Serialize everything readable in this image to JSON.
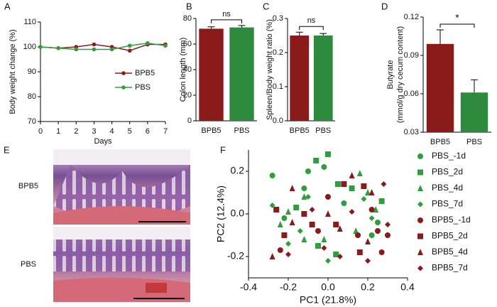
{
  "chart_data": [
    {
      "type": "line",
      "panel_label": "A",
      "xlabel": "Days",
      "ylabel": "Body weight change (%)",
      "x": [
        0,
        1,
        2,
        3,
        4,
        5,
        6,
        7
      ],
      "xlim": [
        0,
        7
      ],
      "xticks": [
        0,
        1,
        2,
        3,
        4,
        5,
        6,
        7
      ],
      "ylim": [
        70,
        110
      ],
      "yticks": [
        70,
        80,
        90,
        100,
        110
      ],
      "legend": "center-right",
      "series": [
        {
          "name": "BPB5",
          "color": "#8b1a1a",
          "values": [
            100,
            99.5,
            100,
            101,
            100,
            98.5,
            101,
            101
          ]
        },
        {
          "name": "PBS",
          "color": "#2e9e3e",
          "values": [
            100,
            99.5,
            99,
            99,
            99,
            100.5,
            101.5,
            100.5
          ]
        }
      ]
    },
    {
      "type": "bar",
      "panel_label": "B",
      "ylabel": "Colon length (mm)",
      "categories": [
        "BPB5",
        "PBS"
      ],
      "values": [
        72,
        73
      ],
      "errors": [
        1.5,
        1.5
      ],
      "colors": [
        "#8b1a1a",
        "#2e8b3e"
      ],
      "ylim": [
        0,
        80
      ],
      "yticks": [
        0,
        20,
        40,
        60,
        80
      ],
      "annotation": "ns"
    },
    {
      "type": "bar",
      "panel_label": "C",
      "ylabel": "Spleen/Body weight ratio (%)",
      "categories": [
        "BPB5",
        "PBS"
      ],
      "values": [
        0.25,
        0.25
      ],
      "errors": [
        0.01,
        0.006
      ],
      "colors": [
        "#8b1a1a",
        "#2e8b3e"
      ],
      "ylim": [
        0,
        0.3
      ],
      "yticks": [
        {
          "value": 0,
          "label": "0.0"
        },
        0.1,
        0.2,
        0.3
      ],
      "annotation": "ns"
    },
    {
      "type": "bar",
      "panel_label": "D",
      "ylabel": [
        "Butyrate",
        "(mmol/g dry cecum content)"
      ],
      "categories": [
        "BPB5",
        "PBS"
      ],
      "values": [
        0.099,
        0.061
      ],
      "errors": [
        0.011,
        0.01
      ],
      "colors": [
        "#8b1a1a",
        "#2e8b3e"
      ],
      "ylim": [
        0.03,
        0.12
      ],
      "yticks": [
        0.03,
        0.06,
        0.09,
        0.12
      ],
      "annotation": "*"
    },
    {
      "type": "scatter",
      "panel_label": "F",
      "xlabel": "PC1 (21.8%)",
      "ylabel": "PC2 (12.4%)",
      "xlim": [
        -0.4,
        0.4
      ],
      "xticks": [
        -0.4,
        -0.2,
        {
          "value": 0,
          "label": "0.0"
        },
        0.2,
        0.4
      ],
      "ylim": [
        -0.3,
        0.3
      ],
      "yticks": [
        -0.2,
        {
          "value": 0,
          "label": "0.0"
        },
        0.2
      ],
      "legend": "right",
      "series": [
        {
          "name": "PBS_-1d",
          "color": "#2e9e3e",
          "marker": "circle",
          "x": [
            -0.28,
            -0.1,
            -0.02,
            0.08,
            0.15,
            0.25,
            0.22,
            -0.12,
            -0.22
          ],
          "values": [
            0.18,
            0.2,
            0.22,
            0.05,
            -0.1,
            -0.04,
            -0.1,
            0.12,
            -0.02
          ]
        },
        {
          "name": "PBS_2d",
          "color": "#2e9e3e",
          "marker": "square",
          "x": [
            0.0,
            -0.06,
            0.05,
            0.12,
            0.27,
            -0.16,
            0.04,
            -0.05
          ],
          "values": [
            0.28,
            0.25,
            0.14,
            0.12,
            0.06,
            0.03,
            -0.19,
            -0.15
          ]
        },
        {
          "name": "PBS_4d",
          "color": "#2e9e3e",
          "marker": "triangle",
          "x": [
            0.16,
            0.2,
            -0.12,
            -0.2,
            0.24,
            -0.24,
            -0.12,
            -0.02,
            0.14
          ],
          "values": [
            0.19,
            0.1,
            0.08,
            0.01,
            0.02,
            -0.05,
            -0.12,
            -0.12,
            -0.08
          ]
        },
        {
          "name": "PBS_7d",
          "color": "#2e9e3e",
          "marker": "diamond",
          "x": [
            -0.28,
            -0.1,
            0.18,
            -0.2,
            0.0,
            0.22,
            -0.14
          ],
          "values": [
            0.04,
            0.08,
            0.07,
            -0.14,
            -0.22,
            -0.02,
            -0.08
          ]
        },
        {
          "name": "BPB5_-1d",
          "color": "#8b1a1a",
          "marker": "circle",
          "x": [
            0.0,
            0.15,
            0.25,
            0.27,
            -0.24,
            0.22,
            0.3,
            -0.05
          ],
          "values": [
            0.08,
            -0.1,
            -0.08,
            -0.18,
            -0.17,
            0.02,
            -0.1,
            -0.08
          ]
        },
        {
          "name": "BPB5_2d",
          "color": "#8b1a1a",
          "marker": "square",
          "x": [
            0.08,
            0.18,
            -0.26,
            -0.12,
            0.04,
            -0.08,
            -0.22,
            0.16
          ],
          "values": [
            0.14,
            0.13,
            0.02,
            0.0,
            -0.05,
            -0.05,
            -0.1,
            -0.18
          ]
        },
        {
          "name": "BPB5_4d",
          "color": "#8b1a1a",
          "marker": "triangle",
          "x": [
            0.12,
            0.22,
            -0.18,
            0.0,
            0.06,
            -0.18,
            0.2,
            -0.28
          ],
          "values": [
            0.18,
            0.1,
            0.12,
            0.0,
            -0.07,
            -0.04,
            -0.13,
            -0.2
          ]
        },
        {
          "name": "BPB5_7d",
          "color": "#8b1a1a",
          "marker": "diamond",
          "x": [
            0.28,
            -0.08,
            0.12,
            0.3,
            -0.02,
            0.06,
            0.2,
            -0.2
          ],
          "values": [
            0.14,
            0.02,
            0.01,
            -0.05,
            -0.16,
            -0.2,
            -0.22,
            -0.19
          ]
        }
      ]
    }
  ],
  "panel_e": {
    "panel_label": "E",
    "rows": [
      "BPB5",
      "PBS"
    ]
  }
}
